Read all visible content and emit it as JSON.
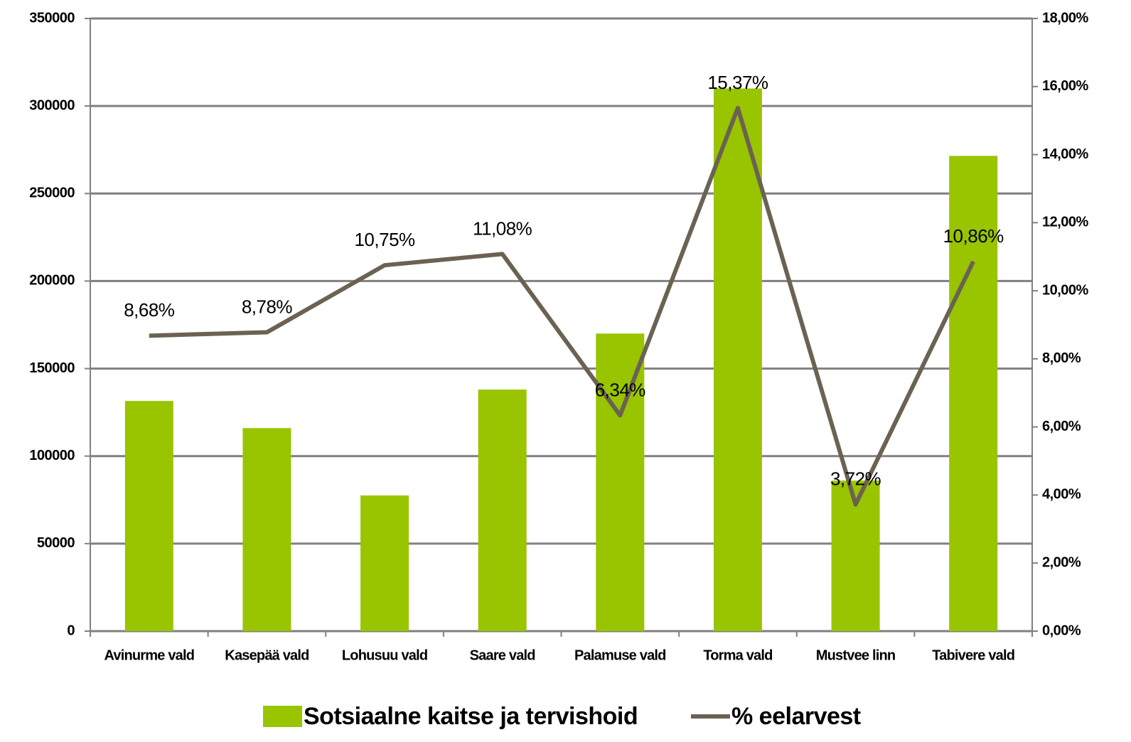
{
  "chart_data": {
    "type": "bar",
    "categories": [
      "Avinurme vald",
      "Kasepää vald",
      "Lohusuu vald",
      "Saare vald",
      "Palamuse vald",
      "Torma vald",
      "Mustvee linn",
      "Tabivere vald"
    ],
    "series": [
      {
        "name": "Sotsiaalne kaitse ja tervishoid",
        "type": "bar",
        "color": "#99c400",
        "values": [
          131500,
          116000,
          77500,
          138000,
          170000,
          310000,
          86000,
          271500
        ]
      },
      {
        "name": "% eelarvest",
        "type": "line",
        "axis": "y2",
        "color": "#6b6253",
        "values": [
          8.68,
          8.78,
          10.75,
          11.08,
          6.34,
          15.37,
          3.72,
          10.86
        ],
        "value_labels": [
          "8,68%",
          "8,78%",
          "10,75%",
          "11,08%",
          "6,34%",
          "15,37%",
          "3,72%",
          "10,86%"
        ]
      }
    ],
    "ylim": [
      0,
      350000
    ],
    "yticks": [
      0,
      50000,
      100000,
      150000,
      200000,
      250000,
      300000,
      350000
    ],
    "y2lim": [
      0,
      18
    ],
    "y2ticks": [
      {
        "value": 0,
        "label": "0,00%"
      },
      {
        "value": 2,
        "label": "2,00%"
      },
      {
        "value": 4,
        "label": "4,00%"
      },
      {
        "value": 6,
        "label": "6,00%"
      },
      {
        "value": 8,
        "label": "8,00%"
      },
      {
        "value": 10,
        "label": "10,00%"
      },
      {
        "value": 12,
        "label": "12,00%"
      },
      {
        "value": 14,
        "label": "14,00%"
      },
      {
        "value": 16,
        "label": "16,00%"
      },
      {
        "value": 18,
        "label": "18,00%"
      }
    ],
    "grid": true,
    "legend": "bottom"
  }
}
